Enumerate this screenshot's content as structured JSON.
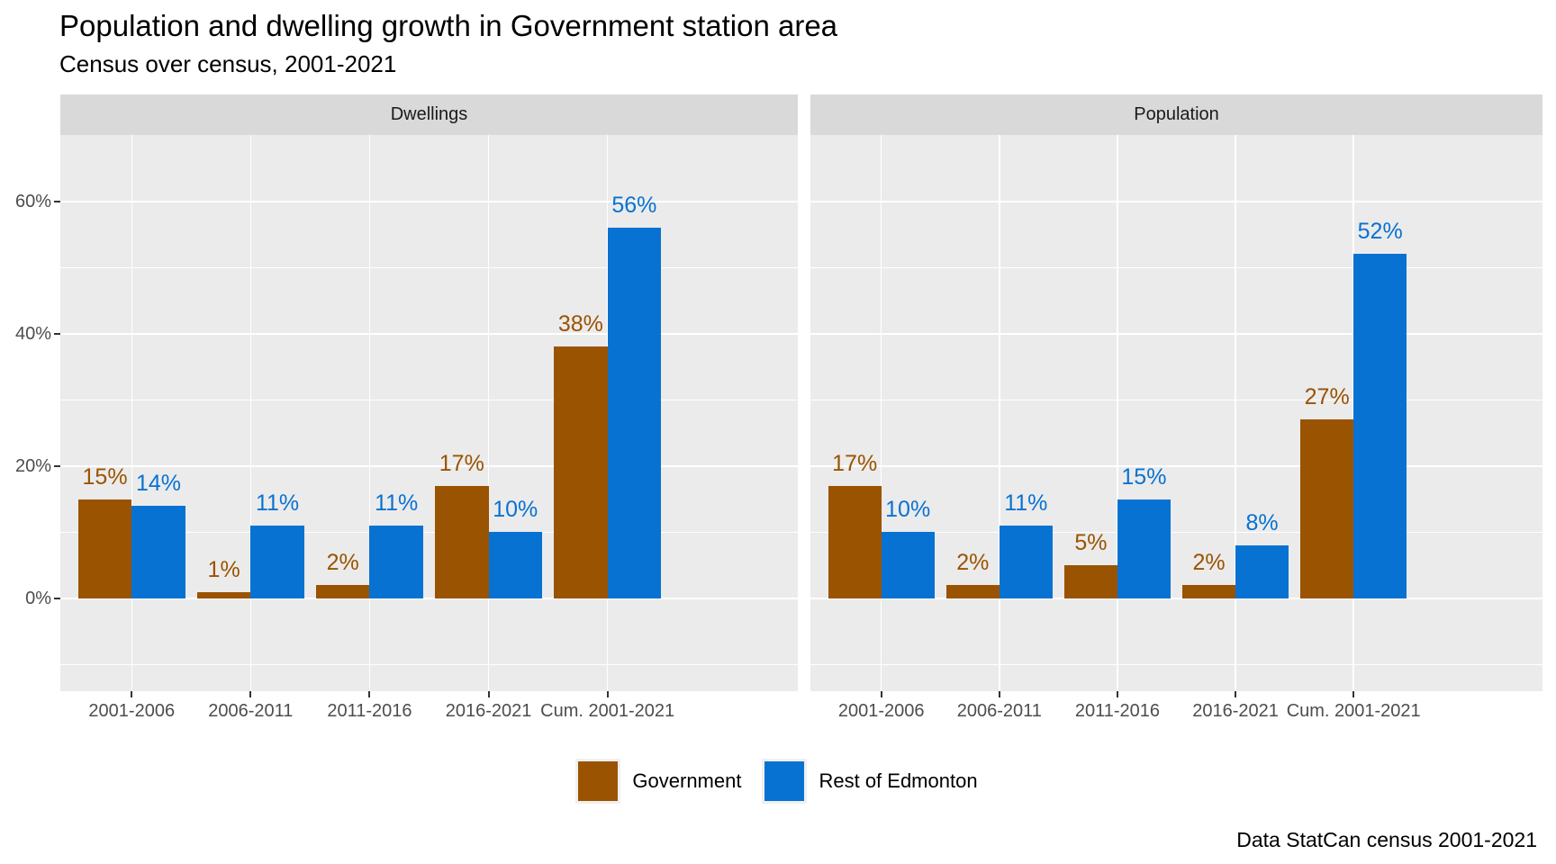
{
  "title": "Population and dwelling growth in Government station area",
  "subtitle": "Census over census, 2001-2021",
  "caption": "Data StatCan census 2001-2021",
  "colors": {
    "government": "#9a5301",
    "rest_of_edmonton": "#0872d2",
    "panel_background": "#ebebeb",
    "strip_background": "#d9d9d9",
    "gridline": "#ffffff",
    "axis_text": "#4d4d4d",
    "tick_mark": "#333333"
  },
  "legend": {
    "items": [
      {
        "label": "Government",
        "color": "#9a5301"
      },
      {
        "label": "Rest of Edmonton",
        "color": "#0872d2"
      }
    ]
  },
  "chart_data": {
    "type": "bar",
    "layout_hint": "two faceted panels, grouped (dodged) bars, gray panels with white gridlines, legend bottom center",
    "value_suffix": "%",
    "y_ticks": [
      0,
      20,
      40,
      60
    ],
    "y_minor_ticks": [
      -10,
      10,
      30,
      50
    ],
    "y_domain": [
      -14,
      70
    ],
    "grid": true,
    "legend_position": "bottom",
    "categories": [
      "2001-2006",
      "2006-2011",
      "2011-2016",
      "2016-2021",
      "Cum. 2001-2021"
    ],
    "facets": [
      {
        "label": "Dwellings",
        "series": [
          {
            "name": "Government",
            "values": [
              15,
              1,
              2,
              17,
              38
            ]
          },
          {
            "name": "Rest of Edmonton",
            "values": [
              14,
              11,
              11,
              10,
              56
            ]
          }
        ]
      },
      {
        "label": "Population",
        "series": [
          {
            "name": "Government",
            "values": [
              17,
              2,
              5,
              2,
              27
            ]
          },
          {
            "name": "Rest of Edmonton",
            "values": [
              10,
              11,
              15,
              8,
              52
            ]
          }
        ]
      }
    ]
  }
}
